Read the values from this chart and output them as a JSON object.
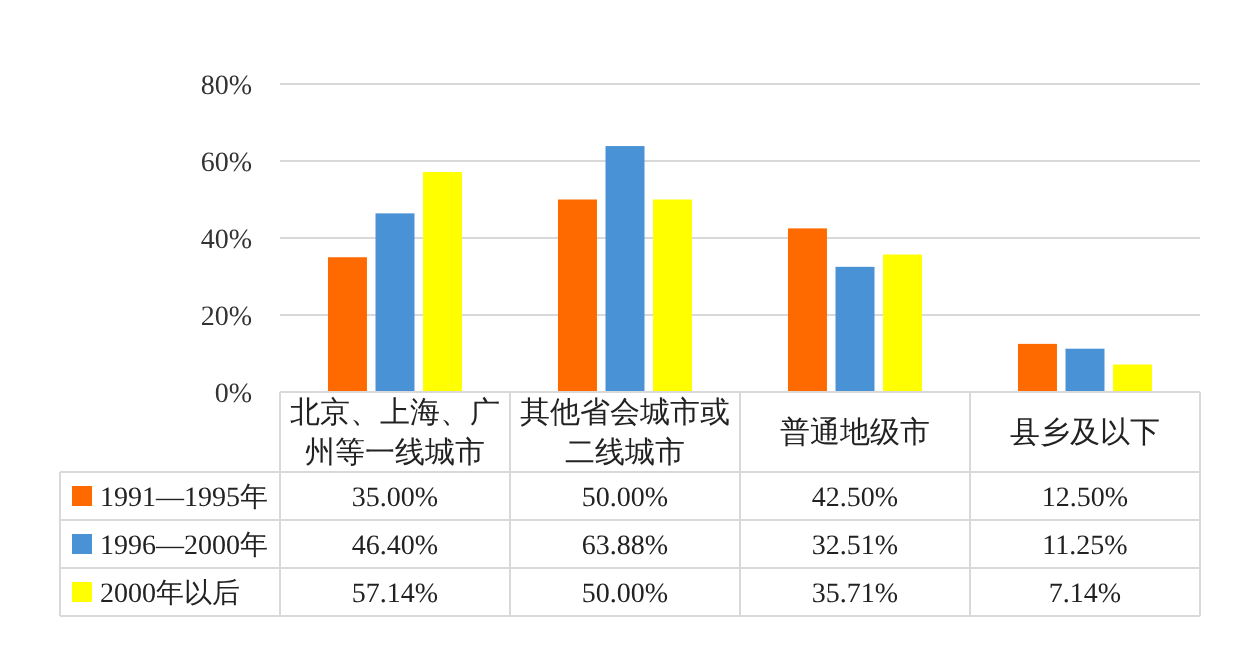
{
  "chart_data": {
    "type": "bar",
    "categories": [
      "北京、上海、广州等一线城市",
      "其他省会城市或二线城市",
      "普通地级市",
      "县乡及以下"
    ],
    "series": [
      {
        "name": "1991—1995年",
        "color": "#ff6a00",
        "values": [
          35.0,
          50.0,
          42.5,
          12.5
        ],
        "value_labels": [
          "35.00%",
          "50.00%",
          "42.50%",
          "12.50%"
        ]
      },
      {
        "name": "1996—2000年",
        "color": "#4a92d6",
        "values": [
          46.4,
          63.88,
          32.51,
          11.25
        ],
        "value_labels": [
          "46.40%",
          "63.88%",
          "32.51%",
          "11.25%"
        ]
      },
      {
        "name": "2000年以后",
        "color": "#ffff00",
        "values": [
          57.14,
          50.0,
          35.71,
          7.14
        ],
        "value_labels": [
          "57.14%",
          "50.00%",
          "35.71%",
          "7.14%"
        ]
      }
    ],
    "ylim": [
      0,
      80
    ],
    "yticks": [
      {
        "value": 0,
        "label": "0%"
      },
      {
        "value": 20,
        "label": "20%"
      },
      {
        "value": 40,
        "label": "40%"
      },
      {
        "value": 60,
        "label": "60%"
      },
      {
        "value": 80,
        "label": "80%"
      }
    ],
    "grid": "y",
    "legend": "bottom"
  }
}
